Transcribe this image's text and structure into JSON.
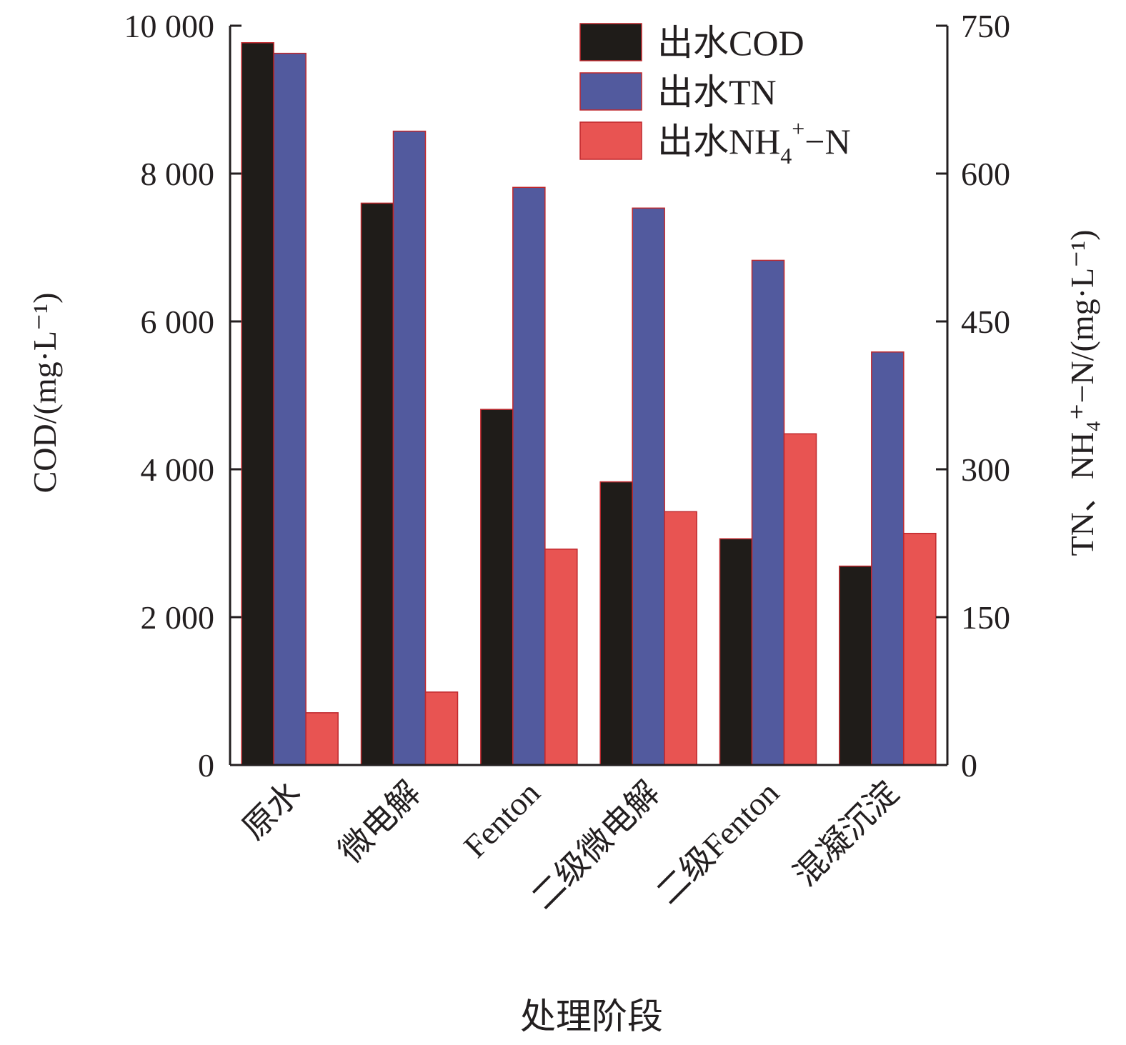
{
  "chart_data": {
    "type": "bar",
    "title": "",
    "xlabel": "处理阶段",
    "ylabel": "COD/(mg·L⁻¹)",
    "ylabel_right": "TN、NH₄⁺−N/(mg·L⁻¹)",
    "ylim": [
      0,
      10000
    ],
    "ylim_right": [
      0,
      750
    ],
    "yticks": [
      "0",
      "2 000",
      "4 000",
      "6 000",
      "8 000",
      "10 000"
    ],
    "yticks_values": [
      0,
      2000,
      4000,
      6000,
      8000,
      10000
    ],
    "yticks_right": [
      "0",
      "150",
      "300",
      "450",
      "600",
      "750"
    ],
    "yticks_right_values": [
      0,
      150,
      300,
      450,
      600,
      750
    ],
    "categories": [
      "原水",
      "微电解",
      "Fenton",
      "二级微电解",
      "二级Fenton",
      "混凝沉淀"
    ],
    "legend_position": "top-right",
    "series": [
      {
        "name": "出水COD",
        "axis": "left",
        "color": "#1f1c19",
        "values": [
          9770,
          7600,
          4810,
          3830,
          3060,
          2690
        ]
      },
      {
        "name": "出水TN",
        "axis": "right",
        "color": "#525a9e",
        "values": [
          722,
          643,
          586,
          565,
          512,
          419
        ]
      },
      {
        "name": "出水NH4+-N",
        "legend_parts": [
          "出水NH",
          "4",
          "+",
          "−N"
        ],
        "axis": "right",
        "color": "#e85452",
        "values": [
          53,
          74,
          219,
          257,
          336,
          235
        ]
      }
    ],
    "grid": false
  }
}
